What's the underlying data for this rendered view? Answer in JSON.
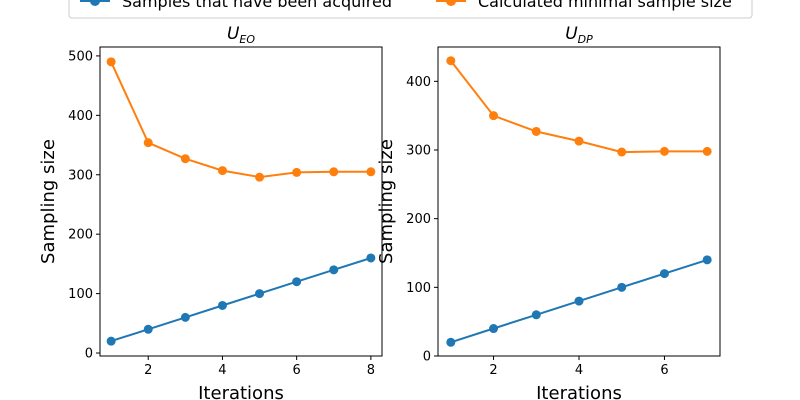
{
  "legend": {
    "entries": [
      {
        "label": "Samples that have been acquired",
        "color": "#1f77b4"
      },
      {
        "label": "Calculated minimal sample size",
        "color": "#ff7f0e"
      }
    ]
  },
  "chart_data": [
    {
      "type": "line",
      "title": "U",
      "title_subscript": "EO",
      "xlabel": "Iterations",
      "ylabel": "Sampling size",
      "xlim": [
        0.7,
        8.3
      ],
      "ylim": [
        -5,
        515
      ],
      "xticks": [
        2,
        4,
        6,
        8
      ],
      "yticks": [
        0,
        100,
        200,
        300,
        400,
        500
      ],
      "x": [
        1,
        2,
        3,
        4,
        5,
        6,
        7,
        8
      ],
      "series": [
        {
          "name": "Samples that have been acquired",
          "color": "#1f77b4",
          "values": [
            20,
            40,
            60,
            80,
            100,
            120,
            140,
            160
          ]
        },
        {
          "name": "Calculated minimal sample size",
          "color": "#ff7f0e",
          "values": [
            490,
            354,
            327,
            307,
            296,
            304,
            305,
            305
          ]
        }
      ]
    },
    {
      "type": "line",
      "title": "U",
      "title_subscript": "DP",
      "xlabel": "Iterations",
      "ylabel": "Sampling size",
      "xlim": [
        0.7,
        7.3
      ],
      "ylim": [
        0,
        450
      ],
      "xticks": [
        2,
        4,
        6
      ],
      "yticks": [
        0,
        100,
        200,
        300,
        400
      ],
      "x": [
        1,
        2,
        3,
        4,
        5,
        6,
        7
      ],
      "series": [
        {
          "name": "Samples that have been acquired",
          "color": "#1f77b4",
          "values": [
            20,
            40,
            60,
            80,
            100,
            120,
            140
          ]
        },
        {
          "name": "Calculated minimal sample size",
          "color": "#ff7f0e",
          "values": [
            430,
            350,
            327,
            313,
            297,
            298,
            298
          ]
        }
      ]
    }
  ]
}
